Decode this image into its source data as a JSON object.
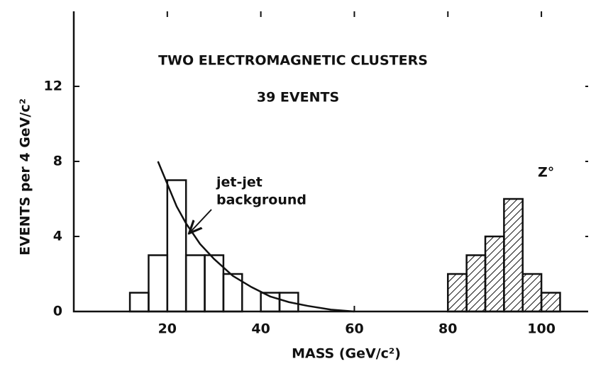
{
  "chart_data": {
    "type": "histogram",
    "title": "TWO ELECTROMAGNETIC CLUSTERS",
    "subtitle": "39 EVENTS",
    "x_label": "MASS  (GeV/c²)",
    "y_label": "EVENTS per 4 GeV/c²",
    "annotations": [
      "jet-jet",
      "background",
      "Z°"
    ],
    "series": [
      {
        "bins": [
          12,
          16,
          20,
          24,
          28,
          32,
          36,
          40,
          44,
          48
        ],
        "values": [
          1,
          3,
          7,
          3,
          3,
          2,
          0,
          1,
          1
        ],
        "hatch": false
      },
      {
        "bins": [
          80,
          84,
          88,
          92,
          96,
          100,
          104
        ],
        "values": [
          2,
          3,
          4,
          6,
          2,
          1
        ],
        "hatch": true
      }
    ],
    "curve": {
      "x": [
        18,
        20,
        22,
        24,
        27,
        30,
        34,
        38,
        42,
        46,
        50,
        55,
        60
      ],
      "y": [
        8,
        6.8,
        5.6,
        4.7,
        3.6,
        2.8,
        1.9,
        1.3,
        0.8,
        0.5,
        0.3,
        0.1,
        0
      ]
    },
    "xlim": [
      0,
      110
    ],
    "ylim": [
      0,
      16
    ],
    "xticks": [
      20,
      40,
      60,
      80,
      100
    ],
    "yticks": [
      0,
      4,
      8,
      12
    ],
    "color": "#111111"
  }
}
